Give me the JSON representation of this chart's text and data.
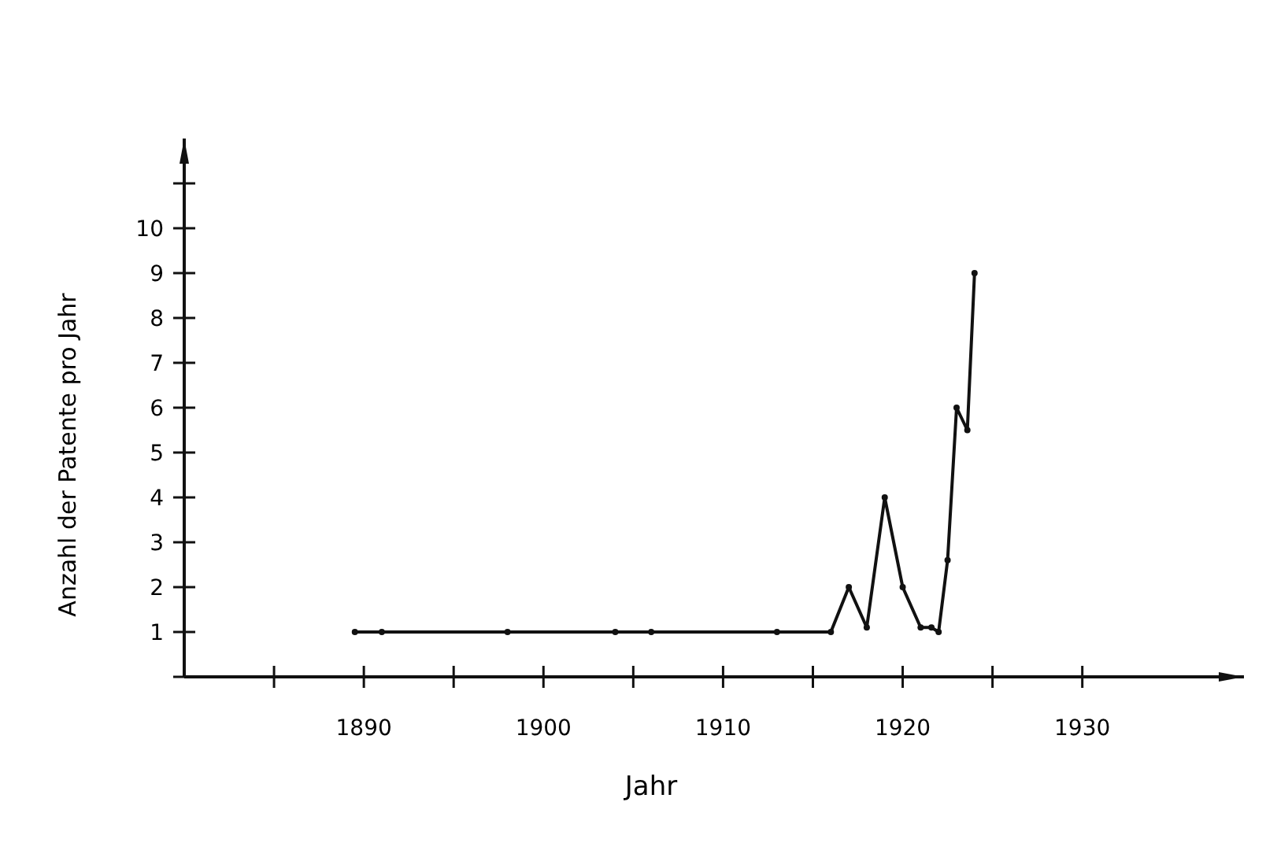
{
  "chart_data": {
    "type": "line",
    "xlabel": "Jahr",
    "ylabel": "Anzahl der Patente pro Jahr",
    "xlim": [
      1880,
      1939
    ],
    "ylim": [
      0,
      12
    ],
    "xticks": [
      {
        "value": 1885,
        "label": null
      },
      1890,
      {
        "value": 1895,
        "label": null
      },
      1900,
      {
        "value": 1905,
        "label": null
      },
      1910,
      {
        "value": 1915,
        "label": null
      },
      1920,
      {
        "value": 1925,
        "label": null
      },
      1930
    ],
    "yticks": [
      {
        "value": 0,
        "label": null
      },
      1,
      2,
      3,
      4,
      5,
      6,
      7,
      8,
      9,
      10,
      {
        "value": 11,
        "label": null
      }
    ],
    "grid": false,
    "marker": "circle",
    "line_style": "solid",
    "series": [
      {
        "color": "#111111",
        "x": [
          1889.5,
          1891,
          1898,
          1904,
          1906,
          1913,
          1916,
          1917,
          1918,
          1919,
          1920,
          1921,
          1921.6,
          1922,
          1922.5,
          1923,
          1923.6,
          1924
        ],
        "values": [
          1,
          1,
          1,
          1,
          1,
          1,
          1,
          2,
          1.1,
          4,
          2,
          1.1,
          1.1,
          1,
          2.6,
          6,
          5.5,
          9
        ]
      }
    ]
  }
}
